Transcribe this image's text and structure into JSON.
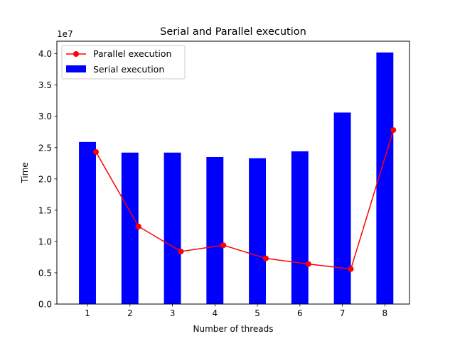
{
  "chart_data": {
    "type": "bar",
    "title": "Serial and Parallel execution",
    "xlabel": "Number of threads",
    "ylabel": "Time",
    "y_offset_label": "1e7",
    "categories": [
      "1",
      "2",
      "3",
      "4",
      "5",
      "6",
      "7",
      "8"
    ],
    "xlim": [
      0.28,
      8.58
    ],
    "ylim": [
      0,
      4.2
    ],
    "y_ticks": [
      "0.0",
      "0.5",
      "1.0",
      "1.5",
      "2.0",
      "2.5",
      "3.0",
      "3.5",
      "4.0"
    ],
    "legend_position": "top-left",
    "series": [
      {
        "name": "Serial execution",
        "kind": "bar",
        "color": "#0000ff",
        "x": [
          1,
          2,
          3,
          4,
          5,
          6,
          7,
          8
        ],
        "values": [
          2.59,
          2.42,
          2.42,
          2.35,
          2.33,
          2.44,
          3.06,
          4.02
        ]
      },
      {
        "name": "Parallel execution",
        "kind": "line",
        "marker": "circle",
        "color": "#ff0000",
        "x": [
          1.2,
          2.2,
          3.2,
          4.2,
          5.2,
          6.2,
          7.2,
          8.2
        ],
        "values": [
          2.43,
          1.24,
          0.84,
          0.94,
          0.73,
          0.64,
          0.56,
          2.78
        ]
      }
    ]
  }
}
